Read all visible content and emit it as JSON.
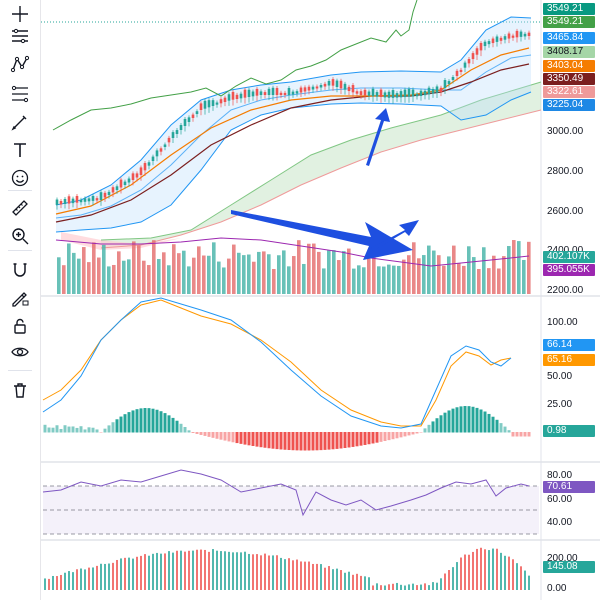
{
  "toolbar": {
    "items": [
      {
        "icon": "crosshair-icon"
      },
      {
        "icon": "horizontal-lines-icon"
      },
      {
        "icon": "pattern-icon"
      },
      {
        "icon": "fib-retracement-icon"
      },
      {
        "icon": "brush-icon"
      },
      {
        "icon": "text-icon"
      },
      {
        "icon": "emoji-icon"
      },
      {
        "icon": "ruler-icon"
      },
      {
        "icon": "zoom-in-icon"
      },
      {
        "icon": "magnet-icon"
      },
      {
        "icon": "lock-drawings-icon"
      },
      {
        "icon": "padlock-icon"
      },
      {
        "icon": "eye-icon"
      },
      {
        "icon": "trash-icon"
      }
    ]
  },
  "price_tags": [
    {
      "label": "3549.21",
      "color": "#089981"
    },
    {
      "label": "3549.21",
      "color": "#43a047"
    },
    {
      "label": "3465.84",
      "color": "#2196f3"
    },
    {
      "label": "3408.17",
      "color": "#a5d6a7"
    },
    {
      "label": "3403.04",
      "color": "#f57c00"
    },
    {
      "label": "3350.49",
      "color": "#7b1f1f"
    },
    {
      "label": "3322.61",
      "color": "#ef9a9a"
    },
    {
      "label": "3225.04",
      "color": "#1e88e5"
    }
  ],
  "price_axis": [
    "3000.00",
    "2800.00",
    "2600.00",
    "2400.00",
    "2200.00"
  ],
  "volume_tags": [
    {
      "label": "402.107K",
      "color": "#26a69a"
    },
    {
      "label": "395.055K",
      "color": "#9c27b0"
    }
  ],
  "kdj_axis": [
    "100.00",
    "50.00",
    "25.00"
  ],
  "kdj_tags": [
    {
      "label": "66.14",
      "color": "#2196f3"
    },
    {
      "label": "65.16",
      "color": "#ff9800"
    },
    {
      "label": "0.98",
      "color": "#26a69a"
    }
  ],
  "rsi_axis": [
    "80.00",
    "60.00",
    "40.00"
  ],
  "rsi_tag": {
    "label": "70.61",
    "color": "#7e57c2"
  },
  "osc_axis": [
    "200.00",
    "0.00"
  ],
  "osc_tag": {
    "label": "145.08",
    "color": "#26a69a"
  },
  "colors": {
    "up": "#26a69a",
    "down": "#ef5350",
    "arrow": "#1e4fe0",
    "rsi_line": "#7e57c2",
    "band": "#2196f3"
  }
}
